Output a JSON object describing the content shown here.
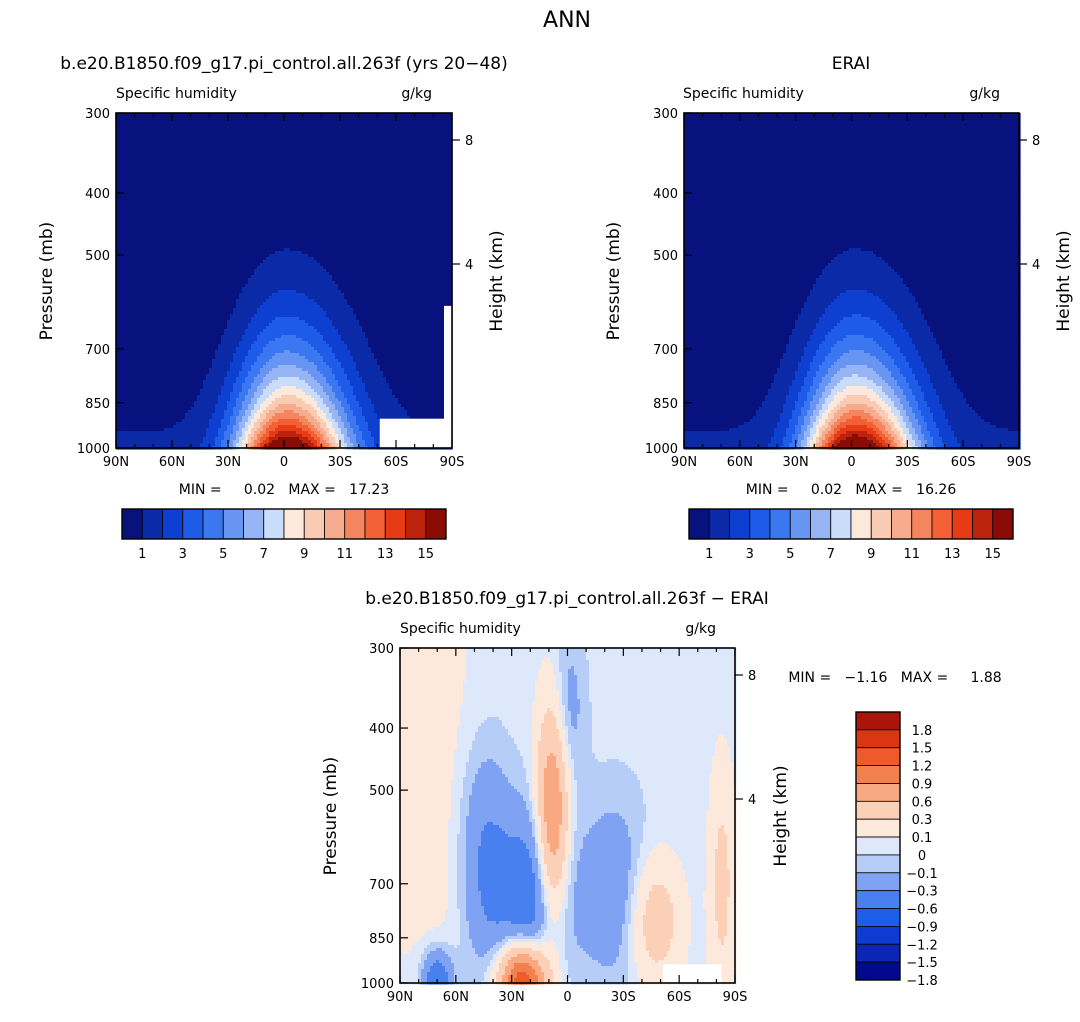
{
  "title": "ANN",
  "colors": {
    "abs_levels": [
      "#08127f",
      "#0b2aa8",
      "#0d3fd0",
      "#1d5be8",
      "#3b77f0",
      "#6895f2",
      "#97b5f4",
      "#c9dcfa",
      "#fde9dc",
      "#f9cbb3",
      "#f7ac8f",
      "#f5855f",
      "#f26135",
      "#e63b14",
      "#bb230c",
      "#8b0c05"
    ],
    "diff_levels": [
      "#02098c",
      "#0b25b4",
      "#0f3bd4",
      "#1d5ee8",
      "#4880ef",
      "#7fa3f2",
      "#b6cdf7",
      "#dde9fb",
      "#fde9dc",
      "#fcd0b7",
      "#f9a982",
      "#f3804f",
      "#ee5a2a",
      "#d93612",
      "#a9150a"
    ],
    "missing": "#ffffff",
    "frame": "#000000"
  },
  "chart_data": [
    {
      "type": "heatmap",
      "title": "b.e20.B1850.f09_g17.pi_control.all.263f (yrs 20−48)",
      "left_label": "Specific humidity",
      "right_label": "g/kg",
      "ylabel": "Pressure (mb)",
      "y2label": "Height (km)",
      "xticks": [
        "90N",
        "60N",
        "30N",
        "0",
        "30S",
        "60S",
        "90S"
      ],
      "yticks": [
        "300",
        "400",
        "500",
        "700",
        "850",
        "1000"
      ],
      "y2ticks": [
        "8",
        "4"
      ],
      "xlim": [
        90,
        -90
      ],
      "ylim": [
        1000,
        300
      ],
      "stats_text": "MIN =     0.02   MAX =   17.23",
      "min": 0.02,
      "max": 17.23,
      "colorbar_labels": [
        "1",
        "3",
        "5",
        "7",
        "9",
        "11",
        "13",
        "15"
      ],
      "levels": [
        1,
        2,
        3,
        4,
        5,
        6,
        7,
        8,
        9,
        10,
        11,
        12,
        13,
        14,
        15
      ]
    },
    {
      "type": "heatmap",
      "title": "ERAI",
      "left_label": "Specific humidity",
      "right_label": "g/kg",
      "ylabel": "Pressure (mb)",
      "y2label": "Height (km)",
      "xticks": [
        "90N",
        "60N",
        "30N",
        "0",
        "30S",
        "60S",
        "90S"
      ],
      "yticks": [
        "300",
        "400",
        "500",
        "700",
        "850",
        "1000"
      ],
      "y2ticks": [
        "8",
        "4"
      ],
      "xlim": [
        90,
        -90
      ],
      "ylim": [
        1000,
        300
      ],
      "stats_text": "MIN =     0.02   MAX =   16.26",
      "min": 0.02,
      "max": 16.26,
      "colorbar_labels": [
        "1",
        "3",
        "5",
        "7",
        "9",
        "11",
        "13",
        "15"
      ],
      "levels": [
        1,
        2,
        3,
        4,
        5,
        6,
        7,
        8,
        9,
        10,
        11,
        12,
        13,
        14,
        15
      ]
    },
    {
      "type": "heatmap",
      "title": "b.e20.B1850.f09_g17.pi_control.all.263f  −  ERAI",
      "left_label": "Specific humidity",
      "right_label": "g/kg",
      "ylabel": "Pressure (mb)",
      "y2label": "Height (km)",
      "xticks": [
        "90N",
        "60N",
        "30N",
        "0",
        "30S",
        "60S",
        "90S"
      ],
      "yticks": [
        "300",
        "400",
        "500",
        "700",
        "850",
        "1000"
      ],
      "y2ticks": [
        "8",
        "4"
      ],
      "xlim": [
        90,
        -90
      ],
      "ylim": [
        1000,
        300
      ],
      "stats_text": "MIN =   −1.16   MAX =     1.88",
      "min": -1.16,
      "max": 1.88,
      "colorbar_labels": [
        "1.8",
        "1.5",
        "1.2",
        "0.9",
        "0.6",
        "0.3",
        "0.1",
        "0",
        "−0.1",
        "−0.3",
        "−0.6",
        "−0.9",
        "−1.2",
        "−1.5",
        "−1.8"
      ],
      "levels": [
        1.8,
        1.5,
        1.2,
        0.9,
        0.6,
        0.3,
        0.1,
        0,
        -0.1,
        -0.3,
        -0.6,
        -0.9,
        -1.2,
        -1.5,
        -1.8
      ]
    }
  ]
}
